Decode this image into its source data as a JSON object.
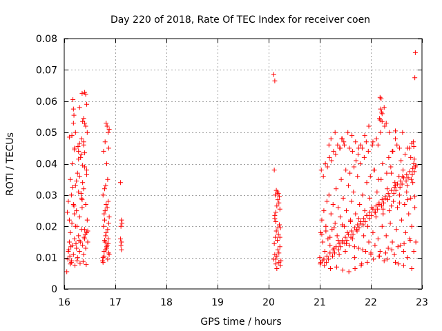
{
  "chart_data": {
    "type": "scatter",
    "title": "Day 220 of 2018, Rate Of TEC Index for receiver coen",
    "xlabel": "GPS time / hours",
    "ylabel": "ROTI / TECUs",
    "xlim": [
      16,
      23
    ],
    "ylim": [
      0,
      0.08
    ],
    "xticks": [
      16,
      17,
      18,
      19,
      20,
      21,
      22,
      23
    ],
    "yticks": [
      0,
      0.01,
      0.02,
      0.03,
      0.04,
      0.05,
      0.06,
      0.07,
      0.08
    ],
    "xtick_labels": [
      "16",
      "17",
      "18",
      "19",
      "20",
      "21",
      "22",
      "23"
    ],
    "ytick_labels": [
      "0",
      "0.01",
      "0.02",
      "0.03",
      "0.04",
      "0.05",
      "0.06",
      "0.07",
      "0.08"
    ],
    "grid": true,
    "marker": "+",
    "color": "#ff0000",
    "series": [
      {
        "name": "ROTI",
        "x": [
          16.05,
          16.08,
          16.1,
          16.12,
          16.14,
          16.16,
          16.18,
          16.2,
          16.22,
          16.24,
          16.26,
          16.28,
          16.3,
          16.32,
          16.34,
          16.36,
          16.38,
          16.4,
          16.42,
          16.44,
          16.46,
          16.1,
          16.12,
          16.15,
          16.2,
          16.25,
          16.3,
          16.35,
          16.4,
          16.45,
          16.08,
          16.14,
          16.18,
          16.24,
          16.28,
          16.34,
          16.38,
          16.42,
          16.12,
          16.22,
          16.3,
          16.36,
          16.44,
          16.16,
          16.26,
          16.32,
          16.4,
          16.2,
          16.28,
          16.38,
          16.15,
          16.22,
          16.34,
          16.42,
          16.18,
          16.3,
          16.38,
          16.35,
          16.4,
          16.42,
          16.44,
          16.17,
          16.18,
          16.19,
          16.38,
          16.36,
          16.4,
          16.45,
          16.2,
          16.1,
          16.3,
          16.27,
          16.33,
          16.07,
          16.11,
          16.14,
          16.21,
          16.25,
          16.31,
          16.37,
          16.43,
          16.09,
          16.13,
          16.23,
          16.29,
          16.39,
          16.41,
          16.46,
          16.06,
          16.19,
          16.35,
          16.33,
          16.16,
          16.24,
          16.44,
          16.36,
          16.28,
          16.4,
          16.76,
          16.78,
          16.8,
          16.82,
          16.84,
          16.86,
          16.88,
          16.77,
          16.79,
          16.81,
          16.83,
          16.85,
          16.87,
          16.75,
          16.8,
          16.82,
          16.86,
          16.78,
          16.84,
          16.88,
          16.76,
          16.81,
          16.85,
          16.79,
          16.83,
          16.87,
          16.8,
          16.86,
          16.77,
          16.84,
          16.82,
          16.88,
          16.76,
          16.85,
          16.78,
          16.87,
          16.81,
          16.83,
          16.86,
          16.79,
          17.1,
          17.12,
          17.11,
          17.13,
          17.1,
          17.12,
          17.11,
          17.12,
          20.1,
          20.12,
          20.14,
          20.16,
          20.18,
          20.2,
          20.22,
          20.24,
          20.11,
          20.13,
          20.15,
          20.17,
          20.19,
          20.21,
          20.23,
          20.12,
          20.14,
          20.16,
          20.18,
          20.2,
          20.22,
          20.13,
          20.17,
          20.21,
          20.15,
          20.19,
          20.11,
          20.23,
          20.2,
          20.16,
          20.14,
          20.12,
          20.18,
          20.22,
          20.1,
          20.12,
          20.14,
          21.0,
          21.02,
          21.04,
          21.06,
          21.08,
          21.1,
          21.12,
          21.14,
          21.16,
          21.18,
          21.2,
          21.22,
          21.24,
          21.26,
          21.28,
          21.3,
          21.32,
          21.34,
          21.36,
          21.38,
          21.4,
          21.42,
          21.44,
          21.46,
          21.48,
          21.5,
          21.52,
          21.54,
          21.56,
          21.58,
          21.6,
          21.62,
          21.64,
          21.66,
          21.68,
          21.7,
          21.72,
          21.74,
          21.76,
          21.78,
          21.8,
          21.82,
          21.84,
          21.86,
          21.88,
          21.9,
          21.92,
          21.94,
          21.96,
          21.98,
          22.0,
          22.02,
          22.04,
          22.06,
          22.08,
          22.1,
          22.12,
          22.14,
          22.16,
          22.18,
          22.2,
          22.22,
          22.24,
          22.26,
          22.28,
          22.3,
          22.32,
          22.34,
          22.36,
          22.38,
          22.4,
          22.42,
          22.44,
          22.46,
          22.48,
          22.5,
          22.52,
          22.54,
          22.56,
          22.58,
          22.6,
          22.62,
          22.64,
          22.66,
          22.68,
          22.7,
          22.72,
          22.74,
          22.76,
          22.78,
          22.8,
          22.82,
          22.84,
          22.86,
          22.88,
          21.01,
          21.05,
          21.09,
          21.13,
          21.17,
          21.21,
          21.25,
          21.29,
          21.33,
          21.37,
          21.41,
          21.45,
          21.49,
          21.53,
          21.57,
          21.61,
          21.65,
          21.69,
          21.73,
          21.77,
          21.81,
          21.85,
          21.89,
          21.93,
          21.97,
          22.01,
          22.05,
          22.09,
          22.13,
          22.17,
          22.21,
          22.25,
          22.29,
          22.33,
          22.37,
          22.41,
          22.45,
          22.49,
          22.53,
          22.57,
          22.61,
          22.65,
          22.69,
          22.73,
          22.77,
          22.81,
          22.85,
          21.03,
          21.07,
          21.11,
          21.15,
          21.19,
          21.23,
          21.27,
          21.31,
          21.35,
          21.39,
          21.43,
          21.47,
          21.51,
          21.55,
          21.59,
          21.63,
          21.67,
          21.71,
          21.75,
          21.79,
          21.83,
          21.87,
          21.91,
          21.95,
          21.99,
          22.03,
          22.07,
          22.11,
          22.15,
          22.19,
          22.23,
          22.27,
          22.31,
          22.35,
          22.39,
          22.43,
          22.47,
          22.51,
          22.55,
          22.59,
          22.63,
          22.67,
          22.71,
          22.75,
          22.79,
          22.83,
          22.87,
          21.02,
          21.08,
          21.14,
          21.2,
          21.26,
          21.32,
          21.38,
          21.44,
          21.5,
          21.56,
          21.62,
          21.68,
          21.74,
          21.8,
          21.86,
          21.92,
          21.98,
          22.04,
          22.1,
          22.16,
          22.22,
          22.28,
          22.34,
          22.4,
          22.46,
          22.52,
          22.58,
          22.64,
          22.7,
          22.76,
          22.82,
          22.88,
          21.04,
          21.12,
          21.2,
          21.28,
          21.36,
          21.44,
          21.52,
          21.6,
          21.68,
          21.76,
          21.84,
          21.92,
          22.0,
          22.08,
          22.16,
          22.24,
          22.32,
          22.4,
          22.48,
          22.56,
          22.64,
          22.72,
          22.8,
          22.86,
          21.18,
          21.22,
          21.3,
          21.4,
          21.44,
          21.48,
          21.58,
          21.64,
          21.7,
          21.76,
          21.8,
          21.88,
          21.96,
          22.04,
          22.14,
          22.18,
          22.22,
          22.26,
          22.3,
          22.36,
          22.42,
          22.48,
          22.56,
          22.62,
          22.72,
          22.78,
          22.84,
          22.18,
          22.2,
          22.19,
          22.21,
          22.17,
          22.22,
          22.48,
          22.8,
          22.85,
          22.87,
          22.86,
          22.84
        ],
        "y": [
          0.0055,
          0.012,
          0.015,
          0.018,
          0.009,
          0.014,
          0.011,
          0.016,
          0.02,
          0.013,
          0.01,
          0.017,
          0.012,
          0.015,
          0.019,
          0.014,
          0.011,
          0.016,
          0.013,
          0.018,
          0.015,
          0.022,
          0.008,
          0.021,
          0.024,
          0.02,
          0.023,
          0.026,
          0.019,
          0.022,
          0.028,
          0.03,
          0.027,
          0.025,
          0.031,
          0.029,
          0.032,
          0.027,
          0.035,
          0.033,
          0.036,
          0.034,
          0.038,
          0.04,
          0.037,
          0.042,
          0.039,
          0.045,
          0.044,
          0.047,
          0.049,
          0.05,
          0.048,
          0.052,
          0.053,
          0.058,
          0.046,
          0.0625,
          0.0628,
          0.0622,
          0.059,
          0.0605,
          0.0575,
          0.0555,
          0.0545,
          0.0535,
          0.053,
          0.05,
          0.0445,
          0.0485,
          0.0465,
          0.0455,
          0.043,
          0.0095,
          0.0105,
          0.0085,
          0.0075,
          0.009,
          0.0082,
          0.0088,
          0.0078,
          0.0125,
          0.0135,
          0.0145,
          0.0155,
          0.0165,
          0.0175,
          0.0185,
          0.0245,
          0.0265,
          0.0285,
          0.0305,
          0.0325,
          0.0345,
          0.0365,
          0.0395,
          0.0415,
          0.0435,
          0.01,
          0.012,
          0.015,
          0.018,
          0.014,
          0.016,
          0.011,
          0.02,
          0.022,
          0.017,
          0.013,
          0.019,
          0.021,
          0.009,
          0.025,
          0.027,
          0.028,
          0.024,
          0.026,
          0.023,
          0.03,
          0.033,
          0.035,
          0.032,
          0.04,
          0.045,
          0.047,
          0.05,
          0.044,
          0.052,
          0.053,
          0.051,
          0.0085,
          0.0095,
          0.0105,
          0.0115,
          0.0125,
          0.0135,
          0.0145,
          0.0155,
          0.034,
          0.022,
          0.02,
          0.021,
          0.016,
          0.015,
          0.014,
          0.0125,
          0.0095,
          0.011,
          0.008,
          0.0105,
          0.0125,
          0.0115,
          0.0135,
          0.009,
          0.0145,
          0.0165,
          0.0185,
          0.0155,
          0.0175,
          0.0205,
          0.0195,
          0.0225,
          0.0245,
          0.0265,
          0.0285,
          0.0275,
          0.0255,
          0.03,
          0.031,
          0.0295,
          0.0315,
          0.0305,
          0.038,
          0.0075,
          0.0085,
          0.0065,
          0.0215,
          0.0235,
          0.0195,
          0.0165,
          0.0685,
          0.0665,
          0.0095,
          0.01,
          0.018,
          0.022,
          0.015,
          0.025,
          0.012,
          0.02,
          0.028,
          0.016,
          0.03,
          0.014,
          0.024,
          0.019,
          0.027,
          0.013,
          0.021,
          0.032,
          0.017,
          0.026,
          0.011,
          0.023,
          0.035,
          0.015,
          0.029,
          0.02,
          0.012,
          0.025,
          0.018,
          0.033,
          0.014,
          0.022,
          0.028,
          0.016,
          0.031,
          0.01,
          0.024,
          0.019,
          0.036,
          0.013,
          0.027,
          0.021,
          0.008,
          0.03,
          0.017,
          0.025,
          0.012,
          0.034,
          0.02,
          0.015,
          0.029,
          0.011,
          0.026,
          0.018,
          0.038,
          0.014,
          0.023,
          0.031,
          0.016,
          0.027,
          0.012,
          0.035,
          0.02,
          0.024,
          0.009,
          0.029,
          0.017,
          0.032,
          0.013,
          0.025,
          0.021,
          0.037,
          0.015,
          0.028,
          0.011,
          0.033,
          0.019,
          0.026,
          0.008,
          0.03,
          0.014,
          0.022,
          0.036,
          0.012,
          0.027,
          0.018,
          0.031,
          0.01,
          0.024,
          0.016,
          0.029,
          0.02,
          0.034,
          0.012,
          0.026,
          0.015,
          0.008,
          0.009,
          0.0075,
          0.0085,
          0.0095,
          0.0065,
          0.0105,
          0.0115,
          0.007,
          0.0125,
          0.0135,
          0.006,
          0.0145,
          0.0155,
          0.0055,
          0.0165,
          0.0175,
          0.0065,
          0.0185,
          0.0195,
          0.0075,
          0.0205,
          0.0215,
          0.0085,
          0.0225,
          0.0235,
          0.0095,
          0.0245,
          0.0255,
          0.0105,
          0.0265,
          0.0275,
          0.0115,
          0.0285,
          0.0295,
          0.0125,
          0.0305,
          0.0315,
          0.0135,
          0.0325,
          0.0335,
          0.0145,
          0.0345,
          0.0355,
          0.0155,
          0.0365,
          0.0375,
          0.038,
          0.036,
          0.04,
          0.039,
          0.042,
          0.041,
          0.044,
          0.043,
          0.046,
          0.045,
          0.048,
          0.047,
          0.038,
          0.05,
          0.037,
          0.049,
          0.039,
          0.041,
          0.043,
          0.04,
          0.045,
          0.042,
          0.047,
          0.044,
          0.036,
          0.046,
          0.038,
          0.048,
          0.035,
          0.05,
          0.04,
          0.052,
          0.037,
          0.042,
          0.039,
          0.044,
          0.034,
          0.046,
          0.036,
          0.041,
          0.038,
          0.043,
          0.033,
          0.045,
          0.035,
          0.047,
          0.039,
          0.0085,
          0.0095,
          0.0105,
          0.0115,
          0.0125,
          0.0135,
          0.0145,
          0.0155,
          0.0165,
          0.0175,
          0.0185,
          0.0195,
          0.0205,
          0.0215,
          0.0225,
          0.0235,
          0.0245,
          0.0255,
          0.0265,
          0.0275,
          0.0285,
          0.0295,
          0.0305,
          0.0315,
          0.0325,
          0.0335,
          0.0345,
          0.0355,
          0.0365,
          0.0375,
          0.0385,
          0.0395,
          0.0175,
          0.0185,
          0.0165,
          0.0195,
          0.0155,
          0.0205,
          0.0145,
          0.0215,
          0.0135,
          0.0225,
          0.0125,
          0.0235,
          0.0115,
          0.0245,
          0.0105,
          0.0255,
          0.0095,
          0.0265,
          0.0085,
          0.0275,
          0.0075,
          0.0285,
          0.0065,
          0.0295,
          0.046,
          0.048,
          0.05,
          0.045,
          0.048,
          0.046,
          0.045,
          0.044,
          0.047,
          0.045,
          0.046,
          0.049,
          0.052,
          0.047,
          0.046,
          0.054,
          0.056,
          0.058,
          0.053,
          0.05,
          0.044,
          0.048,
          0.045,
          0.05,
          0.045,
          0.042,
          0.04,
          0.0612,
          0.0608,
          0.0575,
          0.0565,
          0.0545,
          0.0535,
          0.0505,
          0.0465,
          0.0415,
          0.0755,
          0.0675,
          0.0455
        ]
      }
    ]
  }
}
